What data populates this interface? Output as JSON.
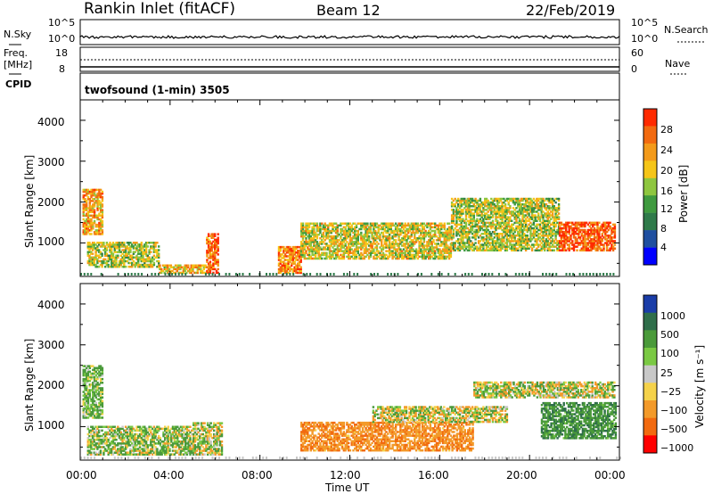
{
  "header": {
    "station": "Rankin Inlet (fitACF)",
    "beam": "Beam 12",
    "date": "22/Feb/2019"
  },
  "strips": {
    "nsky_label": "N.Sky",
    "nsky_ticks": [
      "10^5",
      "10^0"
    ],
    "nsearch_label": "N.Search",
    "nsearch_ticks": [
      "10^5",
      "10^0"
    ],
    "freq_label_1": "Freq.",
    "freq_label_2": "[MHz]",
    "freq_ticks": [
      "18",
      "8"
    ],
    "nave_label": "Nave",
    "nave_ticks": [
      "60",
      "0"
    ],
    "cpid_label": "CPID",
    "cpid_value": "twofsound (1-min) 3505"
  },
  "panels": {
    "power": {
      "ylabel": "Slant Range [km]",
      "yticks": [
        "4000",
        "3000",
        "2000",
        "1000"
      ],
      "colorbar_label": "Power [dB]",
      "colorbar_ticks": [
        "28",
        "24",
        "20",
        "16",
        "12",
        "8",
        "4"
      ]
    },
    "velocity": {
      "ylabel": "Slant Range [km]",
      "yticks": [
        "4000",
        "3000",
        "2000",
        "1000"
      ],
      "colorbar_label": "Velocity [m s⁻¹]",
      "colorbar_ticks": [
        "1000",
        "500",
        "100",
        "25",
        "−25",
        "−100",
        "−500",
        "−1000"
      ]
    }
  },
  "xaxis": {
    "label": "Time UT",
    "ticks": [
      "00:00",
      "04:00",
      "08:00",
      "12:00",
      "16:00",
      "20:00",
      "00:00"
    ]
  },
  "colors": {
    "power_scale": [
      "#0000ff",
      "#1f4fa0",
      "#2f7a4a",
      "#3f9a3f",
      "#8ec63f",
      "#f5c518",
      "#f39a1a",
      "#f26a10",
      "#ff2a00"
    ],
    "velocity_scale": [
      "#1a3da8",
      "#2f6e4a",
      "#4a9a3a",
      "#7ac943",
      "#c8c8c8",
      "#f5d24a",
      "#f39a2a",
      "#f26a10",
      "#ff0000"
    ]
  },
  "chart_data": [
    {
      "type": "heatmap",
      "name_panel": "power",
      "x_range_hours": [
        0,
        24
      ],
      "y_range_km": [
        180,
        4500
      ],
      "z_range_db": [
        0,
        30
      ],
      "regions": [
        {
          "t0": 0.1,
          "t1": 1.0,
          "r0": 1200,
          "r1": 2300,
          "z": 22
        },
        {
          "t0": 0.3,
          "t1": 3.5,
          "r0": 400,
          "r1": 1000,
          "z": 16
        },
        {
          "t0": 3.5,
          "t1": 5.6,
          "r0": 250,
          "r1": 450,
          "z": 20
        },
        {
          "t0": 5.6,
          "t1": 6.1,
          "r0": 250,
          "r1": 1200,
          "z": 27
        },
        {
          "t0": 8.8,
          "t1": 9.8,
          "r0": 250,
          "r1": 900,
          "z": 24
        },
        {
          "t0": 9.8,
          "t1": 16.5,
          "r0": 600,
          "r1": 1500,
          "z": 18
        },
        {
          "t0": 16.5,
          "t1": 21.3,
          "r0": 800,
          "r1": 2100,
          "z": 16
        },
        {
          "t0": 21.3,
          "t1": 23.8,
          "r0": 800,
          "r1": 1500,
          "z": 28
        }
      ]
    },
    {
      "type": "heatmap",
      "name_panel": "velocity",
      "x_range_hours": [
        0,
        24
      ],
      "y_range_km": [
        180,
        4500
      ],
      "z_range_ms": [
        -1000,
        1000
      ],
      "regions": [
        {
          "t0": 0.1,
          "t1": 1.0,
          "r0": 1200,
          "r1": 2500,
          "z": 100
        },
        {
          "t0": 0.3,
          "t1": 5.0,
          "r0": 300,
          "r1": 1000,
          "z": 50
        },
        {
          "t0": 5.0,
          "t1": 6.3,
          "r0": 300,
          "r1": 1100,
          "z": 10
        },
        {
          "t0": 9.8,
          "t1": 17.5,
          "r0": 400,
          "r1": 1100,
          "z": -200
        },
        {
          "t0": 13.0,
          "t1": 19.0,
          "r0": 1100,
          "r1": 1500,
          "z": 0
        },
        {
          "t0": 17.5,
          "t1": 23.8,
          "r0": 1700,
          "r1": 2100,
          "z": 0
        },
        {
          "t0": 20.5,
          "t1": 23.8,
          "r0": 700,
          "r1": 1600,
          "z": 200
        }
      ]
    }
  ]
}
